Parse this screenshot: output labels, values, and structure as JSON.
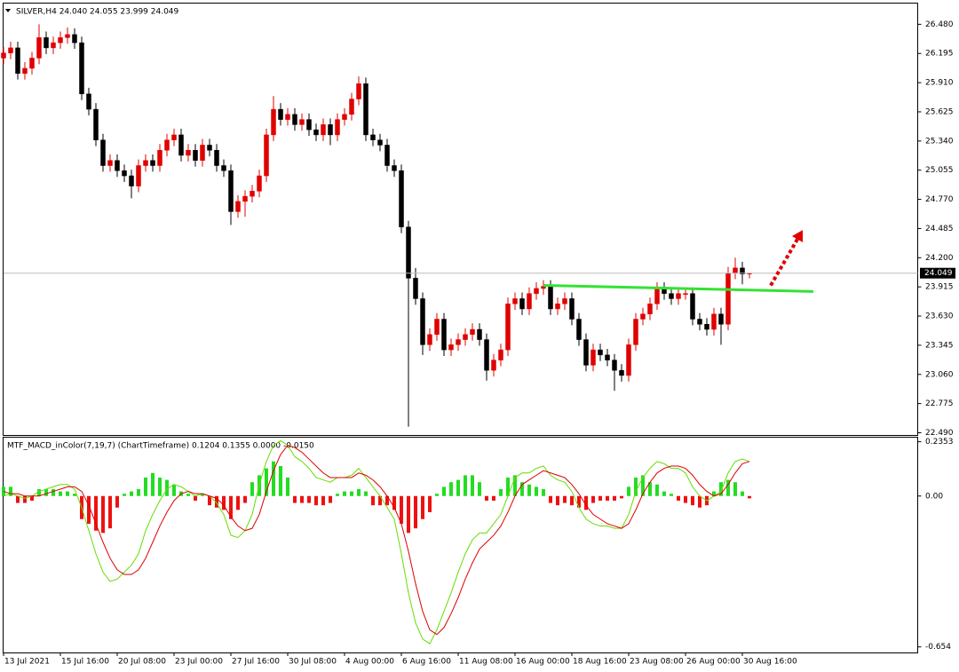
{
  "chart_data": [
    {
      "type": "candlestick",
      "title": "SILVER,H4  24.040 24.055 23.999 24.049",
      "up_color": "#e00000",
      "down_color": "#000000",
      "ylim": [
        22.464,
        26.687
      ],
      "yticks": [
        {
          "value": 26.48,
          "label": "26.480"
        },
        26.195,
        {
          "value": 25.91,
          "label": "25.910"
        },
        25.625,
        {
          "value": 25.34,
          "label": "25.340"
        },
        25.055,
        {
          "value": 24.77,
          "label": "24.770"
        },
        24.485,
        {
          "value": 24.2,
          "label": "24.200"
        },
        23.915,
        {
          "value": 23.63,
          "label": "23.630"
        },
        23.345,
        {
          "value": 23.06,
          "label": "23.060"
        },
        22.775,
        {
          "value": 22.49,
          "label": "22.490"
        }
      ],
      "last_price": 24.049,
      "open": [
        26.15,
        26.2,
        26.25,
        26.0,
        26.05,
        26.15,
        26.35,
        26.25,
        26.3,
        26.35,
        26.38,
        26.3,
        25.8,
        25.65,
        25.35,
        25.1,
        25.15,
        25.05,
        25.0,
        24.9,
        25.1,
        25.15,
        25.1,
        25.25,
        25.35,
        25.4,
        25.2,
        25.25,
        25.15,
        25.3,
        25.25,
        25.1,
        25.05,
        24.65,
        24.75,
        24.8,
        24.85,
        25.0,
        25.4,
        25.65,
        25.55,
        25.6,
        25.5,
        25.55,
        25.45,
        25.4,
        25.5,
        25.4,
        25.55,
        25.6,
        25.75,
        25.9,
        25.4,
        25.35,
        25.3,
        25.1,
        25.05,
        24.5,
        24.0,
        23.8,
        23.35,
        23.45,
        23.6,
        23.3,
        23.35,
        23.4,
        23.45,
        23.5,
        23.4,
        23.1,
        23.2,
        23.3,
        23.75,
        23.8,
        23.7,
        23.85,
        23.9,
        23.92,
        23.7,
        23.75,
        23.8,
        23.6,
        23.4,
        23.15,
        23.3,
        23.25,
        23.2,
        23.1,
        23.05,
        23.35,
        23.6,
        23.65,
        23.75,
        23.9,
        23.85,
        23.8,
        23.85,
        23.85,
        23.6,
        23.55,
        23.5,
        23.65,
        23.55,
        24.05,
        24.1,
        24.04
      ],
      "high": [
        26.26,
        26.31,
        26.31,
        26.11,
        26.21,
        26.48,
        26.41,
        26.36,
        26.41,
        26.45,
        26.44,
        26.36,
        25.86,
        25.71,
        25.41,
        25.21,
        25.21,
        25.11,
        25.06,
        25.16,
        25.21,
        25.21,
        25.31,
        25.41,
        25.46,
        25.46,
        25.31,
        25.31,
        25.36,
        25.36,
        25.31,
        25.16,
        25.11,
        24.81,
        24.86,
        24.91,
        25.06,
        25.46,
        25.78,
        25.71,
        25.66,
        25.66,
        25.61,
        25.61,
        25.51,
        25.56,
        25.56,
        25.61,
        25.66,
        25.81,
        25.97,
        25.96,
        25.46,
        25.41,
        25.36,
        25.16,
        25.11,
        24.56,
        24.1,
        23.86,
        23.51,
        23.66,
        23.66,
        23.41,
        23.46,
        23.51,
        23.56,
        23.56,
        23.46,
        23.26,
        23.36,
        23.81,
        23.86,
        23.86,
        23.91,
        23.96,
        23.98,
        23.98,
        23.81,
        23.86,
        23.86,
        23.66,
        23.46,
        23.36,
        23.36,
        23.31,
        23.26,
        23.16,
        23.41,
        23.66,
        23.71,
        23.81,
        23.96,
        23.96,
        23.91,
        23.91,
        23.91,
        23.91,
        23.66,
        23.61,
        23.71,
        23.71,
        24.11,
        24.2,
        24.16,
        24.055
      ],
      "low": [
        26.09,
        26.14,
        25.94,
        25.94,
        25.99,
        26.09,
        26.19,
        26.19,
        26.24,
        26.29,
        26.24,
        25.74,
        25.59,
        25.29,
        25.04,
        25.04,
        24.99,
        24.94,
        24.78,
        24.84,
        25.04,
        25.04,
        25.04,
        25.19,
        25.29,
        25.14,
        25.14,
        25.09,
        25.09,
        25.19,
        25.04,
        24.99,
        24.52,
        24.59,
        24.6,
        24.74,
        24.79,
        24.94,
        25.34,
        25.49,
        25.49,
        25.44,
        25.44,
        25.39,
        25.34,
        25.34,
        25.3,
        25.34,
        25.49,
        25.54,
        25.69,
        25.34,
        25.29,
        25.24,
        25.04,
        24.99,
        24.44,
        22.55,
        23.74,
        23.25,
        23.29,
        23.39,
        23.24,
        23.24,
        23.29,
        23.34,
        23.39,
        23.34,
        23.0,
        23.04,
        23.14,
        23.24,
        23.69,
        23.64,
        23.64,
        23.79,
        23.84,
        23.64,
        23.64,
        23.69,
        23.54,
        23.34,
        23.09,
        23.09,
        23.19,
        23.14,
        22.9,
        22.99,
        22.99,
        23.29,
        23.54,
        23.59,
        23.69,
        23.79,
        23.74,
        23.74,
        23.79,
        23.54,
        23.49,
        23.44,
        23.44,
        23.35,
        23.49,
        23.99,
        23.94,
        23.999
      ],
      "close": [
        26.2,
        26.25,
        26.0,
        26.05,
        26.15,
        26.35,
        26.25,
        26.3,
        26.35,
        26.38,
        26.3,
        25.8,
        25.65,
        25.35,
        25.1,
        25.15,
        25.05,
        25.0,
        24.9,
        25.1,
        25.15,
        25.1,
        25.25,
        25.35,
        25.4,
        25.2,
        25.25,
        25.15,
        25.3,
        25.25,
        25.1,
        25.05,
        24.65,
        24.75,
        24.8,
        24.85,
        25.0,
        25.4,
        25.65,
        25.55,
        25.6,
        25.5,
        25.55,
        25.45,
        25.4,
        25.5,
        25.4,
        25.55,
        25.6,
        25.75,
        25.9,
        25.4,
        25.35,
        25.3,
        25.1,
        25.05,
        24.5,
        24.0,
        23.8,
        23.35,
        23.45,
        23.6,
        23.3,
        23.35,
        23.4,
        23.45,
        23.5,
        23.4,
        23.1,
        23.2,
        23.3,
        23.75,
        23.8,
        23.7,
        23.85,
        23.9,
        23.92,
        23.7,
        23.75,
        23.8,
        23.6,
        23.4,
        23.15,
        23.3,
        23.25,
        23.2,
        23.1,
        23.05,
        23.35,
        23.6,
        23.65,
        23.75,
        23.9,
        23.85,
        23.8,
        23.85,
        23.85,
        23.6,
        23.55,
        23.5,
        23.65,
        23.55,
        24.05,
        24.1,
        24.04,
        24.049
      ],
      "annotations": [
        {
          "type": "line",
          "color": "#33e233",
          "x": [
            76,
            114
          ],
          "y": [
            23.93,
            23.87
          ]
        },
        {
          "type": "arrow",
          "color": "#e00000",
          "x": [
            108,
            112.5
          ],
          "y": [
            23.93,
            24.47
          ]
        }
      ]
    },
    {
      "type": "macd",
      "title": "MTF_MACD_inColor(7,19,7) (ChartTimeframe) 0.1204 0.1355 0.0000 -0.0150",
      "ylim": [
        -0.68,
        0.255
      ],
      "yticks": [
        0.2353,
        {
          "value": 0,
          "label": "0.00"
        },
        -0.654
      ],
      "up_color": "#22dd22",
      "down_color": "#ee1111",
      "categories": [
        "13 Jul 2021",
        null,
        null,
        null,
        null,
        null,
        null,
        null,
        "15 Jul 16:00",
        null,
        null,
        null,
        null,
        null,
        null,
        null,
        "20 Jul 08:00",
        null,
        null,
        null,
        null,
        null,
        null,
        null,
        "23 Jul 00:00",
        null,
        null,
        null,
        null,
        null,
        null,
        null,
        "27 Jul 16:00",
        null,
        null,
        null,
        null,
        null,
        null,
        null,
        "30 Jul 08:00",
        null,
        null,
        null,
        null,
        null,
        null,
        null,
        "4 Aug 00:00",
        null,
        null,
        null,
        null,
        null,
        null,
        null,
        "6 Aug 16:00",
        null,
        null,
        null,
        null,
        null,
        null,
        null,
        "11 Aug 08:00",
        null,
        null,
        null,
        null,
        null,
        null,
        null,
        "16 Aug 00:00",
        null,
        null,
        null,
        null,
        null,
        null,
        null,
        "18 Aug 16:00",
        null,
        null,
        null,
        null,
        null,
        null,
        null,
        "23 Aug 08:00",
        null,
        null,
        null,
        null,
        null,
        null,
        null,
        "26 Aug 00:00",
        null,
        null,
        null,
        null,
        null,
        null,
        null,
        "30 Aug 16:00",
        null
      ],
      "histogram": [
        0.04,
        0.04,
        -0.03,
        -0.03,
        -0.02,
        0.03,
        0.03,
        0.03,
        0.02,
        0.02,
        0.01,
        -0.1,
        -0.12,
        -0.15,
        -0.16,
        -0.14,
        -0.05,
        0.01,
        0.02,
        0.03,
        0.08,
        0.1,
        0.08,
        0.07,
        0.05,
        0.02,
        0.01,
        -0.02,
        0.01,
        -0.04,
        -0.05,
        -0.06,
        -0.1,
        -0.06,
        -0.03,
        0.06,
        0.09,
        0.12,
        0.15,
        0.13,
        0.08,
        -0.03,
        -0.03,
        -0.03,
        -0.04,
        -0.04,
        -0.03,
        0.01,
        0.02,
        0.02,
        0.03,
        0.02,
        -0.04,
        -0.04,
        -0.04,
        -0.06,
        -0.12,
        -0.16,
        -0.14,
        -0.1,
        -0.07,
        0.01,
        0.04,
        0.06,
        0.07,
        0.09,
        0.09,
        0.06,
        -0.02,
        -0.02,
        0.03,
        0.08,
        0.09,
        0.06,
        0.05,
        0.04,
        0.03,
        -0.03,
        -0.04,
        -0.03,
        -0.04,
        -0.05,
        -0.06,
        -0.03,
        -0.02,
        -0.02,
        -0.02,
        -0.01,
        0.04,
        0.08,
        0.09,
        0.06,
        0.05,
        0.02,
        0.01,
        -0.02,
        -0.03,
        -0.04,
        -0.05,
        -0.04,
        0.02,
        0.06,
        0.07,
        0.06,
        0.02,
        -0.01
      ],
      "series": [
        {
          "color": "#66dd00",
          "values": [
            0.0,
            0.01,
            0.0,
            -0.01,
            0.0,
            0.02,
            0.03,
            0.04,
            0.05,
            0.05,
            0.03,
            -0.05,
            -0.15,
            -0.25,
            -0.33,
            -0.37,
            -0.36,
            -0.33,
            -0.3,
            -0.25,
            -0.15,
            -0.08,
            -0.02,
            0.03,
            0.05,
            0.04,
            0.02,
            0.0,
            0.01,
            0.0,
            -0.03,
            -0.08,
            -0.17,
            -0.18,
            -0.15,
            -0.08,
            0.05,
            0.15,
            0.22,
            0.24,
            0.22,
            0.17,
            0.15,
            0.12,
            0.08,
            0.07,
            0.06,
            0.08,
            0.08,
            0.09,
            0.12,
            0.08,
            0.04,
            0.0,
            -0.05,
            -0.1,
            -0.25,
            -0.42,
            -0.55,
            -0.62,
            -0.64,
            -0.58,
            -0.5,
            -0.42,
            -0.33,
            -0.25,
            -0.19,
            -0.16,
            -0.16,
            -0.12,
            -0.08,
            0.0,
            0.08,
            0.1,
            0.1,
            0.12,
            0.13,
            0.09,
            0.07,
            0.06,
            0.02,
            -0.05,
            -0.1,
            -0.12,
            -0.13,
            -0.13,
            -0.14,
            -0.14,
            -0.08,
            0.02,
            0.08,
            0.12,
            0.15,
            0.14,
            0.12,
            0.12,
            0.1,
            0.04,
            0.0,
            -0.02,
            0.0,
            0.02,
            0.1,
            0.15,
            0.16,
            0.15
          ]
        },
        {
          "color": "#dd0000",
          "values": [
            0.02,
            0.01,
            0.01,
            0.0,
            0.0,
            0.0,
            0.01,
            0.02,
            0.03,
            0.04,
            0.04,
            0.02,
            -0.04,
            -0.12,
            -0.2,
            -0.27,
            -0.32,
            -0.34,
            -0.34,
            -0.32,
            -0.27,
            -0.2,
            -0.13,
            -0.07,
            -0.02,
            0.01,
            0.02,
            0.01,
            0.01,
            0.0,
            -0.01,
            -0.04,
            -0.09,
            -0.13,
            -0.15,
            -0.14,
            -0.08,
            0.02,
            0.11,
            0.18,
            0.22,
            0.21,
            0.19,
            0.16,
            0.13,
            0.1,
            0.08,
            0.08,
            0.08,
            0.08,
            0.1,
            0.09,
            0.07,
            0.04,
            0.0,
            -0.05,
            -0.12,
            -0.24,
            -0.38,
            -0.5,
            -0.58,
            -0.6,
            -0.57,
            -0.51,
            -0.44,
            -0.36,
            -0.29,
            -0.23,
            -0.2,
            -0.17,
            -0.13,
            -0.07,
            0.0,
            0.05,
            0.07,
            0.09,
            0.11,
            0.1,
            0.09,
            0.08,
            0.05,
            0.01,
            -0.04,
            -0.08,
            -0.1,
            -0.12,
            -0.13,
            -0.14,
            -0.12,
            -0.06,
            0.01,
            0.06,
            0.1,
            0.12,
            0.13,
            0.13,
            0.12,
            0.09,
            0.05,
            0.02,
            0.0,
            0.01,
            0.05,
            0.1,
            0.14,
            0.15
          ]
        }
      ]
    }
  ]
}
